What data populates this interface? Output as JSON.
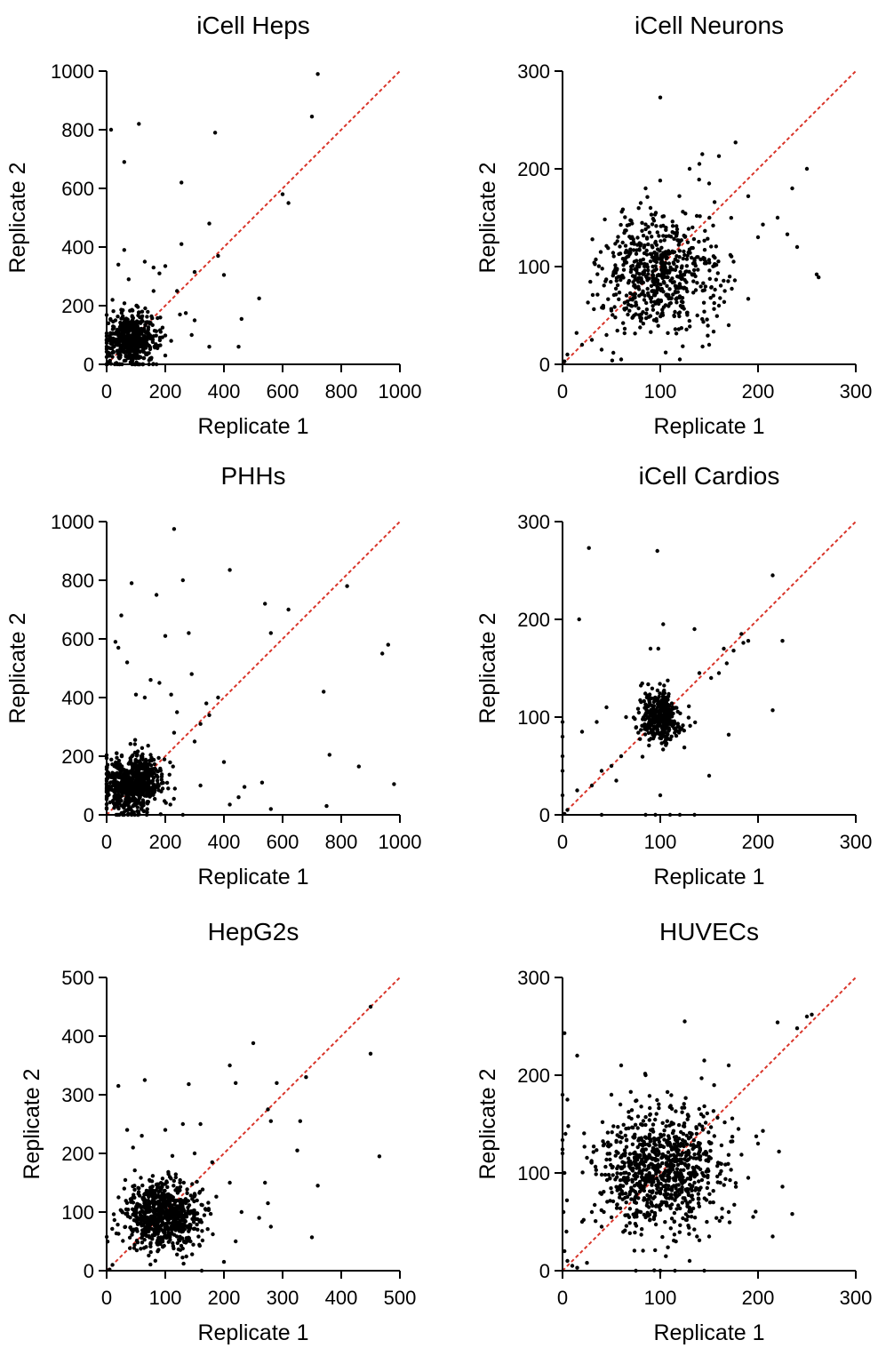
{
  "colors": {
    "points": "#000000",
    "identity_line": "#d9352a",
    "axes": "#000000"
  },
  "chart_data": [
    {
      "type": "scatter",
      "title": "iCell Heps",
      "xlabel": "Replicate 1",
      "ylabel": "Replicate 2",
      "xlim": [
        0,
        1000
      ],
      "ylim": [
        0,
        1000
      ],
      "xticks": [
        "0",
        "200",
        "400",
        "600",
        "800",
        "1000"
      ],
      "yticks": [
        "0",
        "200",
        "400",
        "600",
        "800",
        "1000"
      ],
      "identity_line": [
        [
          0,
          0
        ],
        [
          1000,
          1000
        ]
      ],
      "cluster": {
        "center": [
          85,
          85
        ],
        "spread": [
          45,
          45
        ],
        "count": 500
      },
      "outliers": [
        [
          15,
          800
        ],
        [
          60,
          690
        ],
        [
          110,
          820
        ],
        [
          370,
          790
        ],
        [
          720,
          990
        ],
        [
          700,
          845
        ],
        [
          600,
          580
        ],
        [
          620,
          550
        ],
        [
          255,
          620
        ],
        [
          255,
          410
        ],
        [
          350,
          480
        ],
        [
          380,
          370
        ],
        [
          400,
          305
        ],
        [
          300,
          315
        ],
        [
          520,
          225
        ],
        [
          460,
          155
        ],
        [
          450,
          60
        ],
        [
          350,
          60
        ],
        [
          250,
          170
        ],
        [
          270,
          175
        ],
        [
          290,
          100
        ],
        [
          200,
          335
        ],
        [
          160,
          330
        ],
        [
          60,
          390
        ],
        [
          40,
          340
        ],
        [
          130,
          350
        ],
        [
          180,
          310
        ],
        [
          240,
          250
        ],
        [
          300,
          150
        ],
        [
          200,
          30
        ],
        [
          220,
          80
        ],
        [
          160,
          250
        ],
        [
          20,
          220
        ],
        [
          10,
          30
        ],
        [
          30,
          150
        ],
        [
          75,
          290
        ]
      ]
    },
    {
      "type": "scatter",
      "title": "iCell Neurons",
      "xlabel": "Replicate 1",
      "ylabel": "Replicate 2",
      "xlim": [
        0,
        300
      ],
      "ylim": [
        0,
        300
      ],
      "xticks": [
        "0",
        "100",
        "200",
        "300"
      ],
      "yticks": [
        "0",
        "100",
        "200",
        "300"
      ],
      "identity_line": [
        [
          0,
          0
        ],
        [
          300,
          300
        ]
      ],
      "cluster": {
        "center": [
          100,
          92
        ],
        "spread": [
          30,
          30
        ],
        "count": 620
      },
      "outliers": [
        [
          100,
          273
        ],
        [
          177,
          227
        ],
        [
          160,
          213
        ],
        [
          143,
          215
        ],
        [
          140,
          205
        ],
        [
          250,
          200
        ],
        [
          235,
          180
        ],
        [
          220,
          150
        ],
        [
          205,
          143
        ],
        [
          230,
          133
        ],
        [
          260,
          92
        ],
        [
          262,
          89
        ],
        [
          190,
          172
        ],
        [
          190,
          67
        ],
        [
          170,
          40
        ],
        [
          200,
          130
        ],
        [
          160,
          60
        ],
        [
          30,
          25
        ],
        [
          20,
          20
        ],
        [
          5,
          10
        ],
        [
          2,
          3
        ],
        [
          40,
          15
        ],
        [
          60,
          5
        ],
        [
          120,
          5
        ],
        [
          130,
          200
        ],
        [
          150,
          185
        ],
        [
          85,
          180
        ],
        [
          80,
          165
        ],
        [
          90,
          160
        ],
        [
          240,
          120
        ],
        [
          175,
          105
        ],
        [
          150,
          20
        ],
        [
          50,
          55
        ],
        [
          45,
          30
        ],
        [
          70,
          60
        ]
      ]
    },
    {
      "type": "scatter",
      "title": "PHHs",
      "xlabel": "Replicate 1",
      "ylabel": "Replicate 2",
      "xlim": [
        0,
        1000
      ],
      "ylim": [
        0,
        1000
      ],
      "xticks": [
        "0",
        "200",
        "400",
        "600",
        "800",
        "1000"
      ],
      "yticks": [
        "0",
        "200",
        "400",
        "600",
        "800",
        "1000"
      ],
      "identity_line": [
        [
          0,
          0
        ],
        [
          1000,
          1000
        ]
      ],
      "cluster": {
        "center": [
          85,
          105
        ],
        "spread": [
          50,
          50
        ],
        "count": 700
      },
      "outliers": [
        [
          230,
          975
        ],
        [
          420,
          835
        ],
        [
          260,
          800
        ],
        [
          85,
          790
        ],
        [
          170,
          750
        ],
        [
          540,
          720
        ],
        [
          620,
          700
        ],
        [
          820,
          780
        ],
        [
          50,
          680
        ],
        [
          280,
          620
        ],
        [
          560,
          620
        ],
        [
          30,
          590
        ],
        [
          40,
          570
        ],
        [
          200,
          610
        ],
        [
          960,
          580
        ],
        [
          940,
          550
        ],
        [
          290,
          480
        ],
        [
          150,
          460
        ],
        [
          180,
          450
        ],
        [
          380,
          400
        ],
        [
          340,
          380
        ],
        [
          740,
          420
        ],
        [
          320,
          310
        ],
        [
          350,
          340
        ],
        [
          230,
          280
        ],
        [
          400,
          180
        ],
        [
          760,
          205
        ],
        [
          860,
          165
        ],
        [
          980,
          105
        ],
        [
          530,
          110
        ],
        [
          470,
          95
        ],
        [
          320,
          100
        ],
        [
          210,
          90
        ],
        [
          420,
          35
        ],
        [
          750,
          30
        ],
        [
          560,
          20
        ],
        [
          260,
          0
        ],
        [
          100,
          410
        ],
        [
          130,
          400
        ],
        [
          70,
          520
        ],
        [
          220,
          410
        ],
        [
          240,
          350
        ],
        [
          300,
          250
        ],
        [
          450,
          60
        ]
      ]
    },
    {
      "type": "scatter",
      "title": "iCell Cardios",
      "xlabel": "Replicate 1",
      "ylabel": "Replicate 2",
      "xlim": [
        0,
        300
      ],
      "ylim": [
        0,
        300
      ],
      "xticks": [
        "0",
        "100",
        "200",
        "300"
      ],
      "yticks": [
        "0",
        "100",
        "200",
        "300"
      ],
      "identity_line": [
        [
          0,
          0
        ],
        [
          300,
          300
        ]
      ],
      "cluster": {
        "center": [
          100,
          100
        ],
        "spread": [
          10,
          13
        ],
        "count": 380
      },
      "outliers": [
        [
          27,
          273
        ],
        [
          97,
          270
        ],
        [
          215,
          245
        ],
        [
          17,
          200
        ],
        [
          103,
          195
        ],
        [
          183,
          185
        ],
        [
          185,
          176
        ],
        [
          190,
          178
        ],
        [
          175,
          168
        ],
        [
          165,
          170
        ],
        [
          168,
          155
        ],
        [
          160,
          145
        ],
        [
          152,
          140
        ],
        [
          140,
          145
        ],
        [
          135,
          190
        ],
        [
          225,
          178
        ],
        [
          215,
          107
        ],
        [
          170,
          82
        ],
        [
          45,
          110
        ],
        [
          35,
          95
        ],
        [
          20,
          85
        ],
        [
          60,
          60
        ],
        [
          50,
          50
        ],
        [
          40,
          45
        ],
        [
          55,
          35
        ],
        [
          30,
          30
        ],
        [
          15,
          25
        ],
        [
          5,
          5
        ],
        [
          2,
          1
        ],
        [
          0,
          20
        ],
        [
          0,
          45
        ],
        [
          0,
          60
        ],
        [
          0,
          80
        ],
        [
          0,
          95
        ],
        [
          65,
          100
        ],
        [
          90,
          170
        ],
        [
          98,
          170
        ],
        [
          150,
          40
        ],
        [
          100,
          20
        ],
        [
          110,
          0
        ],
        [
          85,
          0
        ],
        [
          95,
          0
        ],
        [
          120,
          0
        ],
        [
          135,
          0
        ],
        [
          40,
          0
        ]
      ]
    },
    {
      "type": "scatter",
      "title": "HepG2s",
      "xlabel": "Replicate 1",
      "ylabel": "Replicate 2",
      "xlim": [
        0,
        500
      ],
      "ylim": [
        0,
        500
      ],
      "xticks": [
        "0",
        "100",
        "200",
        "300",
        "400",
        "500"
      ],
      "yticks": [
        "0",
        "100",
        "200",
        "300",
        "400",
        "500"
      ],
      "identity_line": [
        [
          0,
          0
        ],
        [
          500,
          500
        ]
      ],
      "cluster": {
        "center": [
          95,
          95
        ],
        "spread": [
          35,
          30
        ],
        "count": 720
      },
      "outliers": [
        [
          450,
          450
        ],
        [
          450,
          370
        ],
        [
          465,
          195
        ],
        [
          250,
          388
        ],
        [
          210,
          350
        ],
        [
          220,
          320
        ],
        [
          140,
          318
        ],
        [
          65,
          325
        ],
        [
          20,
          315
        ],
        [
          340,
          330
        ],
        [
          330,
          255
        ],
        [
          325,
          205
        ],
        [
          290,
          320
        ],
        [
          275,
          275
        ],
        [
          280,
          255
        ],
        [
          270,
          150
        ],
        [
          275,
          115
        ],
        [
          280,
          75
        ],
        [
          360,
          145
        ],
        [
          350,
          57
        ],
        [
          160,
          250
        ],
        [
          130,
          250
        ],
        [
          100,
          240
        ],
        [
          35,
          240
        ],
        [
          60,
          230
        ],
        [
          150,
          200
        ],
        [
          180,
          185
        ],
        [
          210,
          150
        ],
        [
          230,
          100
        ],
        [
          220,
          50
        ],
        [
          200,
          15
        ],
        [
          120,
          110
        ],
        [
          10,
          10
        ],
        [
          5,
          2
        ],
        [
          30,
          140
        ],
        [
          45,
          210
        ],
        [
          260,
          90
        ]
      ]
    },
    {
      "type": "scatter",
      "title": "HUVECs",
      "xlabel": "Replicate 1",
      "ylabel": "Replicate 2",
      "xlim": [
        0,
        300
      ],
      "ylim": [
        0,
        300
      ],
      "xticks": [
        "0",
        "100",
        "200",
        "300"
      ],
      "yticks": [
        "0",
        "100",
        "200",
        "300"
      ],
      "identity_line": [
        [
          0,
          0
        ],
        [
          300,
          300
        ]
      ],
      "cluster": {
        "center": [
          100,
          105
        ],
        "spread": [
          32,
          30
        ],
        "count": 900
      },
      "outliers": [
        [
          255,
          262
        ],
        [
          250,
          260
        ],
        [
          240,
          248
        ],
        [
          220,
          254
        ],
        [
          125,
          255
        ],
        [
          2,
          243
        ],
        [
          0,
          180
        ],
        [
          5,
          175
        ],
        [
          15,
          220
        ],
        [
          3,
          140
        ],
        [
          0,
          120
        ],
        [
          2,
          100
        ],
        [
          1,
          60
        ],
        [
          4,
          40
        ],
        [
          2,
          20
        ],
        [
          5,
          10
        ],
        [
          10,
          5
        ],
        [
          15,
          3
        ],
        [
          25,
          8
        ],
        [
          225,
          86
        ],
        [
          235,
          58
        ],
        [
          195,
          55
        ],
        [
          215,
          35
        ],
        [
          170,
          210
        ],
        [
          145,
          215
        ],
        [
          60,
          210
        ],
        [
          50,
          180
        ],
        [
          85,
          200
        ],
        [
          180,
          145
        ],
        [
          205,
          143
        ],
        [
          200,
          130
        ],
        [
          190,
          95
        ],
        [
          170,
          60
        ],
        [
          150,
          35
        ],
        [
          130,
          10
        ],
        [
          115,
          0
        ],
        [
          145,
          0
        ],
        [
          100,
          0
        ],
        [
          75,
          0
        ],
        [
          40,
          45
        ],
        [
          30,
          60
        ],
        [
          20,
          50
        ]
      ]
    }
  ]
}
